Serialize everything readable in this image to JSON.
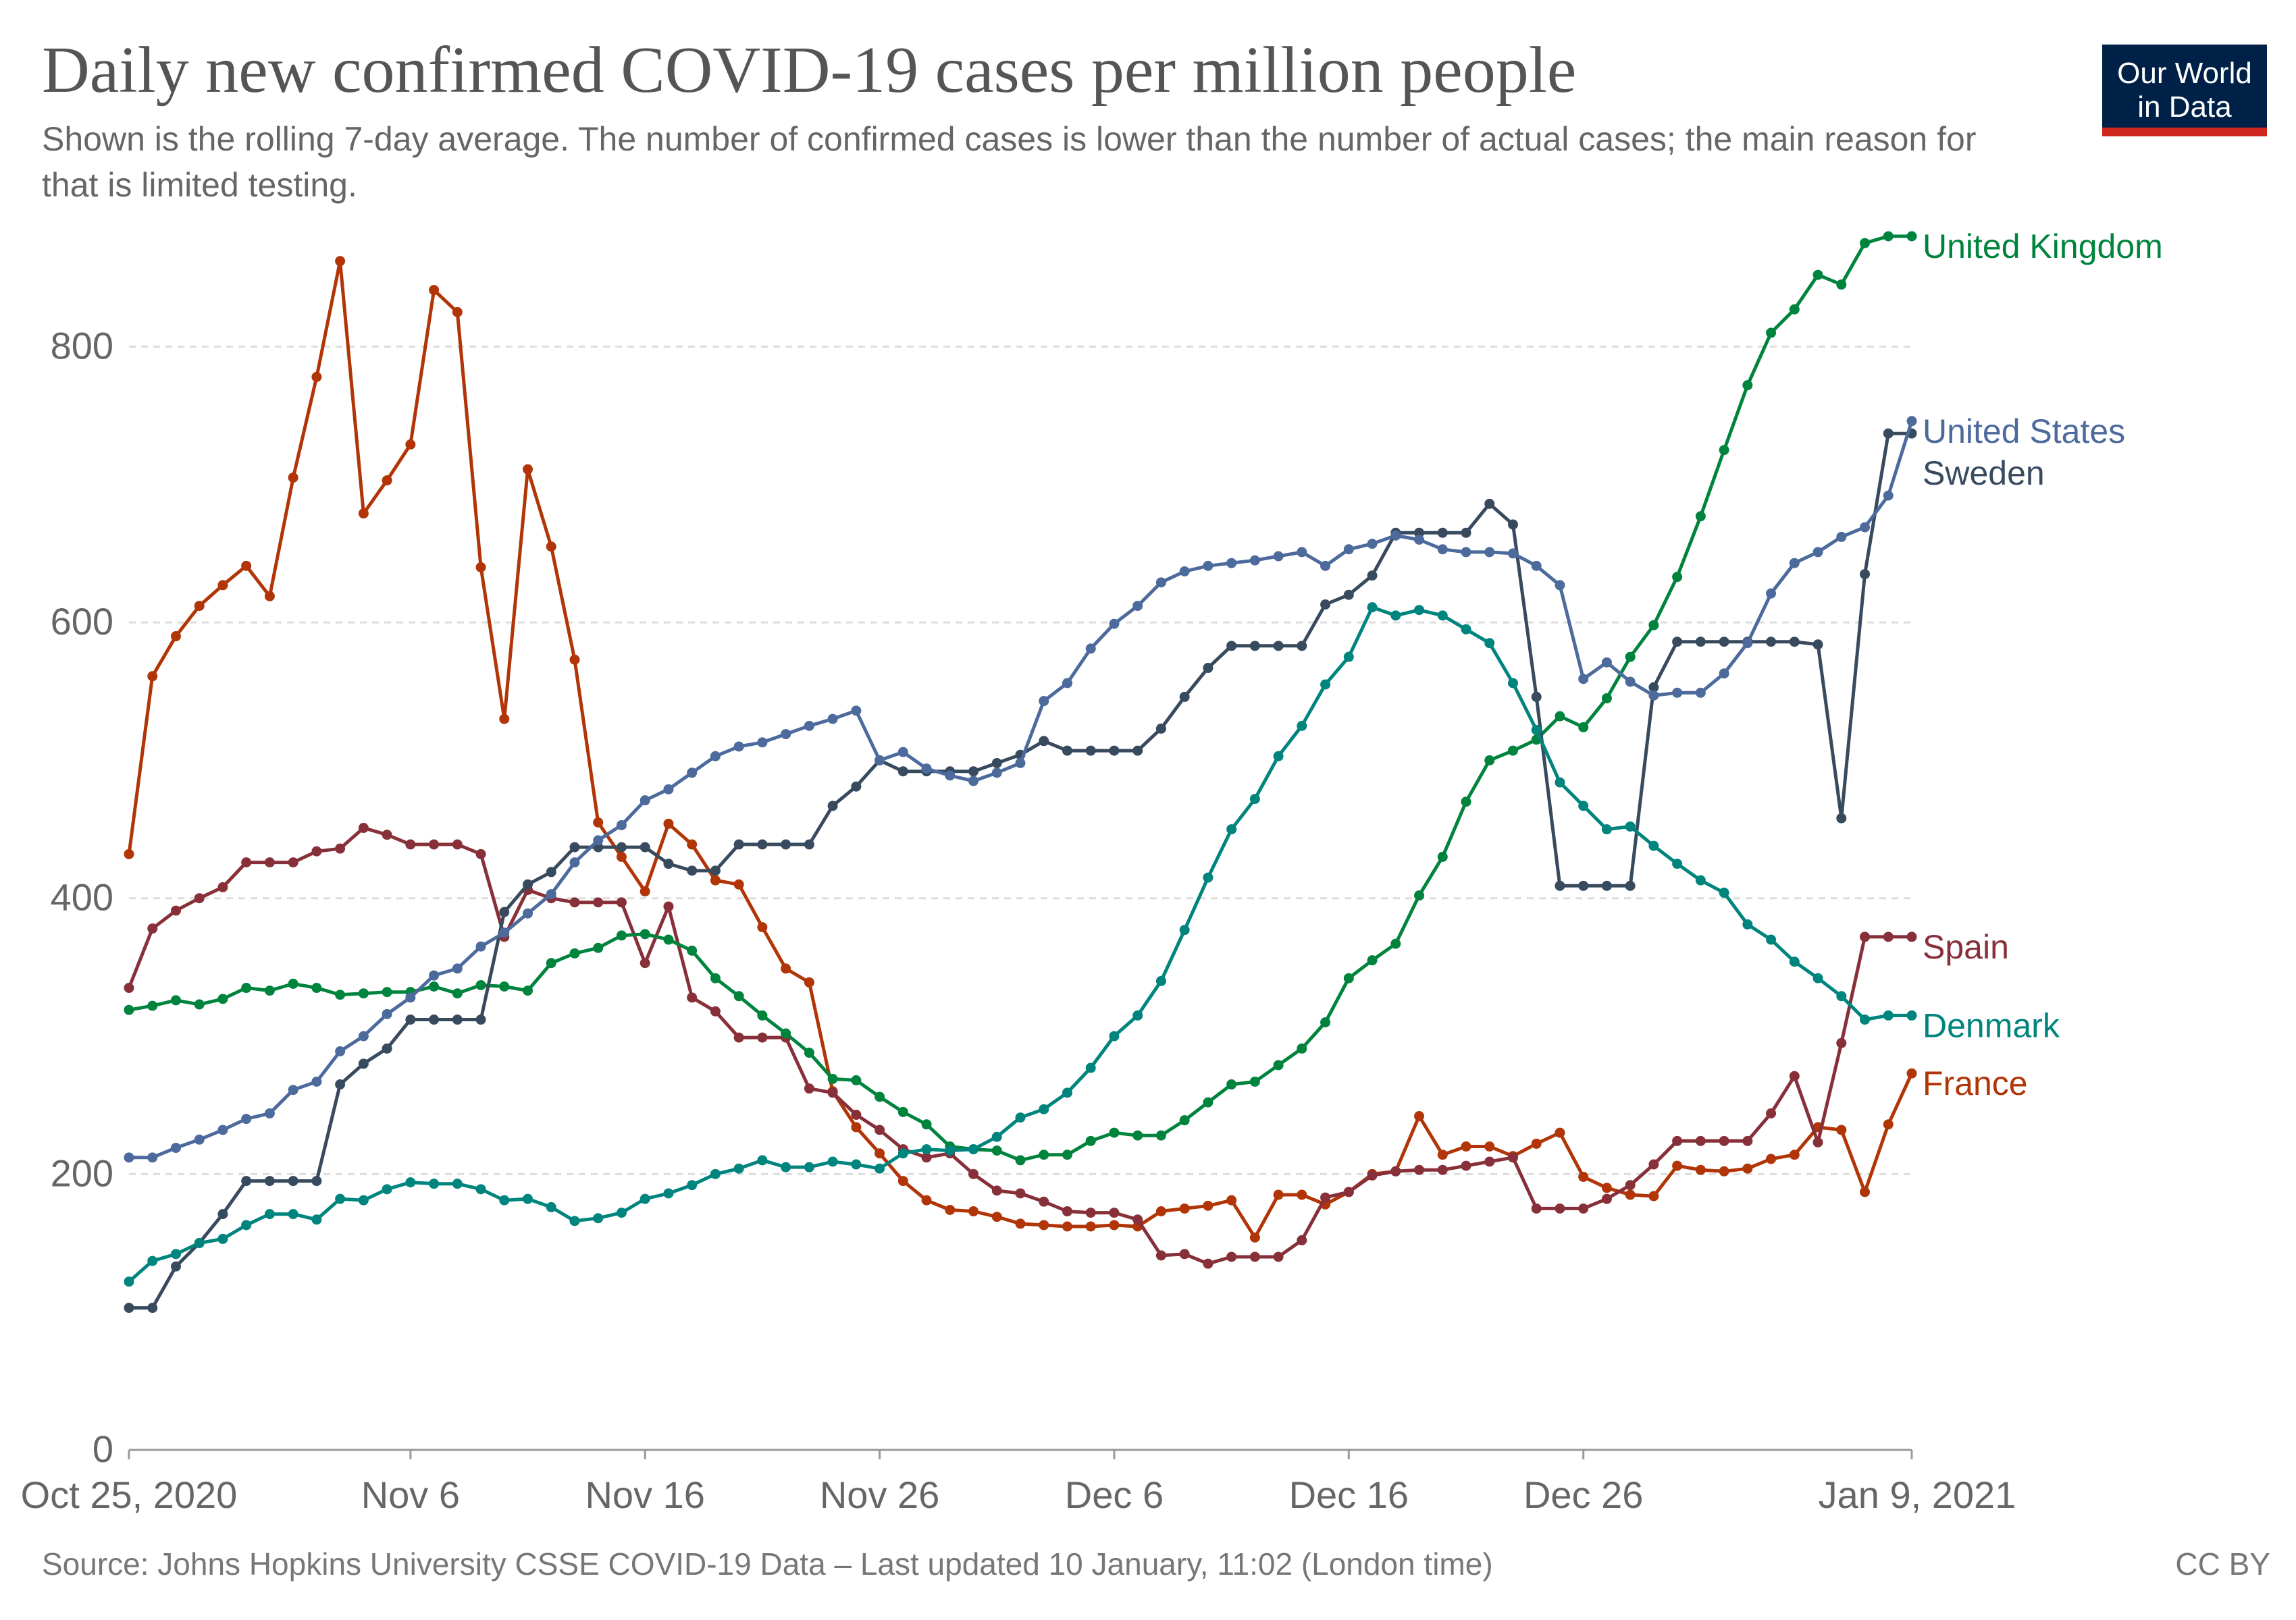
{
  "header": {
    "title": "Daily new confirmed COVID-19 cases per million people",
    "subtitle": "Shown is the rolling 7-day average. The number of confirmed cases is lower than the number of actual cases; the main reason for that is limited testing.",
    "logo_line1": "Our World",
    "logo_line2": "in Data"
  },
  "footer": {
    "source": "Source: Johns Hopkins University CSSE COVID-19 Data – Last updated 10 January, 11:02 (London time)",
    "license": "CC BY"
  },
  "colors": {
    "United Kingdom": "#00843d",
    "Sweden": "#384a5e",
    "United States": "#4c6a9c",
    "Spain": "#883039",
    "Denmark": "#00847e",
    "France": "#b13507",
    "grid": "#dddddd",
    "axis_text": "#666666"
  },
  "chart_data": {
    "type": "line",
    "title": "Daily new confirmed COVID-19 cases per million people",
    "x_start_date": "2020-10-25",
    "x_end_date": "2021-01-09",
    "x_unit": "days since Oct 25, 2020",
    "ylim": [
      0,
      880
    ],
    "yticks": [
      0,
      200,
      400,
      600,
      800
    ],
    "grid": "horizontal dashed",
    "x_ticks": [
      {
        "day": 0,
        "label": "Oct 25, 2020"
      },
      {
        "day": 12,
        "label": "Nov 6"
      },
      {
        "day": 22,
        "label": "Nov 16"
      },
      {
        "day": 32,
        "label": "Nov 26"
      },
      {
        "day": 42,
        "label": "Dec 6"
      },
      {
        "day": 52,
        "label": "Dec 16"
      },
      {
        "day": 62,
        "label": "Dec 26"
      },
      {
        "day": 76,
        "label": "Jan 9, 2021"
      }
    ],
    "series": [
      {
        "name": "France",
        "label": "France",
        "values": [
          432,
          561,
          590,
          612,
          627,
          641,
          619,
          705,
          778,
          862,
          679,
          703,
          729,
          841,
          825,
          640,
          530,
          711,
          655,
          573,
          455,
          430,
          405,
          454,
          439,
          413,
          410,
          379,
          349,
          339,
          260,
          234,
          215,
          195,
          181,
          174,
          173,
          169,
          164,
          163,
          162,
          162,
          163,
          162,
          173,
          175,
          177,
          181,
          154,
          185,
          185,
          178,
          187,
          200,
          202,
          242,
          214,
          220,
          220,
          213,
          222,
          230,
          198,
          190,
          185,
          184,
          206,
          203,
          202,
          204,
          211,
          214,
          234,
          232,
          187,
          236,
          273
        ]
      },
      {
        "name": "Spain",
        "label": "Spain",
        "values": [
          335,
          378,
          391,
          400,
          408,
          426,
          426,
          426,
          434,
          436,
          451,
          446,
          439,
          439,
          439,
          432,
          372,
          406,
          400,
          397,
          397,
          397,
          353,
          394,
          328,
          318,
          299,
          299,
          299,
          262,
          259,
          243,
          232,
          218,
          212,
          215,
          200,
          188,
          186,
          180,
          173,
          172,
          172,
          167,
          141,
          142,
          135,
          140,
          140,
          140,
          152,
          183,
          187,
          199,
          202,
          203,
          203,
          206,
          209,
          212,
          175,
          175,
          175,
          182,
          192,
          207,
          224,
          224,
          224,
          224,
          244,
          271,
          223,
          295,
          372,
          372,
          372
        ]
      },
      {
        "name": "United Kingdom",
        "label": "United Kingdom",
        "values": [
          319,
          322,
          326,
          323,
          327,
          335,
          333,
          338,
          335,
          330,
          331,
          332,
          332,
          336,
          331,
          337,
          336,
          333,
          353,
          360,
          364,
          373,
          374,
          370,
          362,
          342,
          329,
          315,
          302,
          288,
          269,
          268,
          256,
          245,
          236,
          220,
          218,
          217,
          210,
          214,
          214,
          224,
          230,
          228,
          228,
          239,
          252,
          265,
          267,
          279,
          291,
          310,
          342,
          355,
          367,
          402,
          430,
          470,
          500,
          507,
          515,
          532,
          524,
          545,
          575,
          598,
          633,
          677,
          725,
          772,
          810,
          827,
          852,
          845,
          875,
          880,
          880
        ]
      },
      {
        "name": "Sweden",
        "label": "Sweden",
        "values": [
          103,
          103,
          133,
          150,
          171,
          195,
          195,
          195,
          195,
          265,
          280,
          291,
          312,
          312,
          312,
          312,
          390,
          410,
          419,
          437,
          437,
          437,
          437,
          425,
          420,
          420,
          439,
          439,
          439,
          439,
          467,
          481,
          500,
          492,
          492,
          492,
          492,
          498,
          504,
          514,
          507,
          507,
          507,
          507,
          523,
          546,
          567,
          583,
          583,
          583,
          583,
          613,
          620,
          634,
          665,
          665,
          665,
          665,
          686,
          671,
          546,
          409,
          409,
          409,
          409,
          553,
          586,
          586,
          586,
          586,
          586,
          586,
          584,
          458,
          635,
          737,
          737
        ]
      },
      {
        "name": "United States",
        "label": "United States",
        "values": [
          212,
          212,
          219,
          225,
          232,
          240,
          244,
          261,
          267,
          289,
          300,
          316,
          328,
          344,
          349,
          365,
          375,
          389,
          403,
          426,
          442,
          453,
          471,
          479,
          491,
          503,
          510,
          513,
          519,
          525,
          530,
          536,
          500,
          506,
          494,
          489,
          485,
          491,
          498,
          543,
          556,
          581,
          599,
          612,
          629,
          637,
          641,
          643,
          645,
          648,
          651,
          641,
          653,
          657,
          663,
          660,
          653,
          651,
          651,
          650,
          641,
          627,
          559,
          571,
          557,
          547,
          549,
          549,
          563,
          585,
          621,
          643,
          651,
          662,
          669,
          692,
          746
        ]
      },
      {
        "name": "Denmark",
        "label": "Denmark",
        "values": [
          122,
          137,
          142,
          150,
          153,
          163,
          171,
          171,
          167,
          182,
          181,
          189,
          194,
          193,
          193,
          189,
          181,
          182,
          176,
          166,
          168,
          172,
          182,
          186,
          192,
          200,
          204,
          210,
          205,
          205,
          209,
          207,
          204,
          215,
          218,
          217,
          218,
          227,
          241,
          247,
          259,
          277,
          300,
          315,
          340,
          377,
          415,
          450,
          472,
          503,
          525,
          555,
          575,
          611,
          605,
          609,
          605,
          595,
          585,
          556,
          522,
          484,
          467,
          450,
          452,
          438,
          425,
          413,
          404,
          381,
          370,
          354,
          342,
          329,
          312,
          315,
          315
        ]
      }
    ],
    "legend_order": [
      "United Kingdom",
      "Sweden",
      "United States",
      "Spain",
      "Denmark",
      "France"
    ]
  }
}
